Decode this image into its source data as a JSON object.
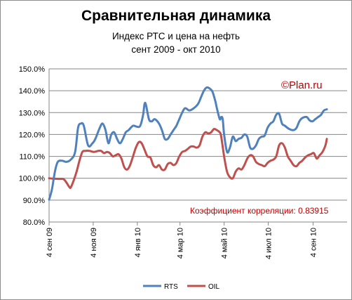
{
  "title": "Сравнительная динамика",
  "subtitle_line1": "Индекс РТС и цена на нефть",
  "subtitle_line2": "сент 2009 - окт 2010",
  "watermark": "©Plan.ru",
  "correlation_label": "Коэффициент корреляции: 0.83915",
  "colors": {
    "rts": "#4f81bd",
    "oil": "#c0504d",
    "grid": "#868686"
  },
  "chart_data": {
    "type": "line",
    "ylim": [
      80,
      150
    ],
    "yticks": [
      "150.0%",
      "140.0%",
      "130.0%",
      "120.0%",
      "110.0%",
      "100.0%",
      "90.0%",
      "80.0%"
    ],
    "xticks": [
      "4 сен 09",
      "4 ноя 09",
      "4 янв 10",
      "4 мар 10",
      "4 май 10",
      "4 июл 10",
      "4 сен 10"
    ],
    "x_range_days": [
      0,
      412
    ],
    "xtick_days": [
      0,
      61,
      122,
      181,
      242,
      303,
      365
    ],
    "grid": "horizontal",
    "legend_position": "bottom",
    "series": [
      {
        "name": "RTS",
        "color": "#4f81bd",
        "points": [
          [
            0,
            90.2
          ],
          [
            4,
            95
          ],
          [
            8,
            103
          ],
          [
            12,
            107.5
          ],
          [
            18,
            108
          ],
          [
            24,
            107.5
          ],
          [
            30,
            108.5
          ],
          [
            36,
            112
          ],
          [
            40,
            123
          ],
          [
            44,
            125
          ],
          [
            48,
            124
          ],
          [
            54,
            115
          ],
          [
            60,
            116
          ],
          [
            64,
            118
          ],
          [
            70,
            123
          ],
          [
            74,
            125
          ],
          [
            78,
            122
          ],
          [
            82,
            116
          ],
          [
            86,
            120
          ],
          [
            90,
            121
          ],
          [
            94,
            118
          ],
          [
            98,
            116
          ],
          [
            102,
            118
          ],
          [
            106,
            121
          ],
          [
            110,
            122
          ],
          [
            116,
            124
          ],
          [
            122,
            123.5
          ],
          [
            126,
            124
          ],
          [
            130,
            129
          ],
          [
            132,
            134
          ],
          [
            134,
            133.5
          ],
          [
            138,
            127
          ],
          [
            142,
            126
          ],
          [
            146,
            127
          ],
          [
            152,
            125
          ],
          [
            156,
            122
          ],
          [
            160,
            118
          ],
          [
            164,
            118
          ],
          [
            168,
            120
          ],
          [
            172,
            122
          ],
          [
            176,
            124
          ],
          [
            180,
            127
          ],
          [
            184,
            130
          ],
          [
            188,
            132
          ],
          [
            194,
            131
          ],
          [
            200,
            132
          ],
          [
            206,
            134
          ],
          [
            210,
            137
          ],
          [
            214,
            140
          ],
          [
            218,
            141.5
          ],
          [
            222,
            141
          ],
          [
            226,
            139.5
          ],
          [
            230,
            135
          ],
          [
            232,
            132
          ],
          [
            236,
            127
          ],
          [
            238,
            128
          ],
          [
            240,
            127
          ],
          [
            242,
            120
          ],
          [
            246,
            112
          ],
          [
            250,
            114
          ],
          [
            254,
            119
          ],
          [
            258,
            117
          ],
          [
            262,
            118
          ],
          [
            266,
            118.5
          ],
          [
            270,
            120
          ],
          [
            274,
            119
          ],
          [
            278,
            114
          ],
          [
            282,
            113.5
          ],
          [
            286,
            115
          ],
          [
            290,
            118
          ],
          [
            294,
            119
          ],
          [
            298,
            119.5
          ],
          [
            302,
            123
          ],
          [
            306,
            125
          ],
          [
            310,
            126
          ],
          [
            314,
            129
          ],
          [
            318,
            129.5
          ],
          [
            322,
            125
          ],
          [
            326,
            124
          ],
          [
            332,
            122.5
          ],
          [
            338,
            122
          ],
          [
            342,
            123
          ],
          [
            346,
            126
          ],
          [
            350,
            127.5
          ],
          [
            356,
            128
          ],
          [
            360,
            126.5
          ],
          [
            364,
            126
          ],
          [
            368,
            127
          ],
          [
            372,
            128
          ],
          [
            376,
            129
          ],
          [
            380,
            131
          ],
          [
            384,
            131.5
          ]
        ]
      },
      {
        "name": "OIL",
        "color": "#c0504d",
        "points": [
          [
            0,
            100
          ],
          [
            6,
            99.8
          ],
          [
            14,
            99.7
          ],
          [
            20,
            99.6
          ],
          [
            24,
            98
          ],
          [
            28,
            96
          ],
          [
            30,
            95.8
          ],
          [
            34,
            99
          ],
          [
            38,
            103
          ],
          [
            42,
            108
          ],
          [
            46,
            112
          ],
          [
            50,
            112.5
          ],
          [
            56,
            112.5
          ],
          [
            62,
            112
          ],
          [
            68,
            112.5
          ],
          [
            72,
            112.5
          ],
          [
            76,
            111.5
          ],
          [
            80,
            112
          ],
          [
            84,
            111.5
          ],
          [
            88,
            110
          ],
          [
            92,
            110.5
          ],
          [
            96,
            111
          ],
          [
            100,
            109
          ],
          [
            104,
            105
          ],
          [
            108,
            104
          ],
          [
            112,
            106
          ],
          [
            116,
            110
          ],
          [
            120,
            114
          ],
          [
            124,
            116.5
          ],
          [
            128,
            116
          ],
          [
            132,
            113
          ],
          [
            136,
            110
          ],
          [
            140,
            109.5
          ],
          [
            144,
            106
          ],
          [
            148,
            105
          ],
          [
            152,
            106
          ],
          [
            156,
            104
          ],
          [
            160,
            104
          ],
          [
            164,
            106.5
          ],
          [
            168,
            107
          ],
          [
            172,
            106
          ],
          [
            176,
            107
          ],
          [
            180,
            110
          ],
          [
            184,
            112
          ],
          [
            188,
            112.5
          ],
          [
            192,
            113.5
          ],
          [
            196,
            114.5
          ],
          [
            200,
            114.5
          ],
          [
            204,
            114
          ],
          [
            208,
            115
          ],
          [
            212,
            119
          ],
          [
            216,
            121
          ],
          [
            220,
            120.5
          ],
          [
            224,
            121
          ],
          [
            228,
            122.5
          ],
          [
            232,
            122
          ],
          [
            236,
            121
          ],
          [
            238,
            119
          ],
          [
            242,
            110
          ],
          [
            246,
            103
          ],
          [
            250,
            100.5
          ],
          [
            254,
            100
          ],
          [
            258,
            103
          ],
          [
            262,
            104.5
          ],
          [
            266,
            104
          ],
          [
            270,
            106
          ],
          [
            274,
            109
          ],
          [
            278,
            110.5
          ],
          [
            282,
            110
          ],
          [
            286,
            107.5
          ],
          [
            290,
            106.5
          ],
          [
            294,
            106
          ],
          [
            298,
            105.5
          ],
          [
            302,
            107
          ],
          [
            306,
            108
          ],
          [
            310,
            108.5
          ],
          [
            314,
            110
          ],
          [
            318,
            115
          ],
          [
            322,
            116
          ],
          [
            326,
            114
          ],
          [
            330,
            110
          ],
          [
            334,
            108
          ],
          [
            338,
            106
          ],
          [
            342,
            105.5
          ],
          [
            346,
            107
          ],
          [
            350,
            108
          ],
          [
            354,
            109.5
          ],
          [
            358,
            110.5
          ],
          [
            362,
            111
          ],
          [
            366,
            111.5
          ],
          [
            370,
            109
          ],
          [
            374,
            110.5
          ],
          [
            378,
            112
          ],
          [
            382,
            115
          ],
          [
            384,
            118
          ]
        ]
      }
    ]
  }
}
